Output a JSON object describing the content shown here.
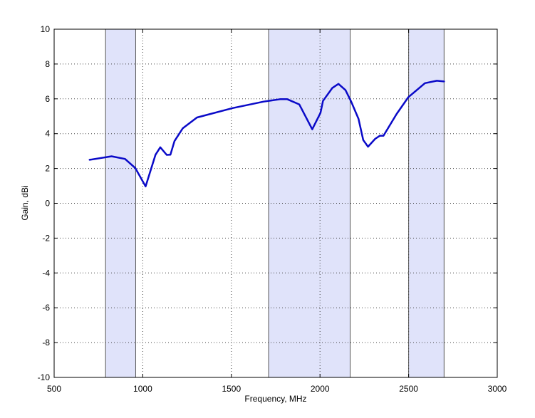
{
  "chart_data": {
    "type": "line",
    "title": "",
    "xlabel": "Frequency, MHz",
    "ylabel": "Gain, dBi",
    "xlim": [
      500,
      3000
    ],
    "ylim": [
      -10,
      10
    ],
    "xticks": [
      500,
      1000,
      1500,
      2000,
      2500,
      3000
    ],
    "yticks": [
      -10,
      -8,
      -6,
      -4,
      -2,
      0,
      2,
      4,
      6,
      8,
      10
    ],
    "grid": true,
    "line_color": "#0a0ac8",
    "band_color": "#e0e3fa",
    "shaded_bands": [
      [
        790,
        960
      ],
      [
        1710,
        2170
      ],
      [
        2500,
        2700
      ]
    ],
    "series": [
      {
        "x": [
          700,
          824,
          900,
          958,
          1016,
          1072,
          1099,
          1135,
          1156,
          1179,
          1226,
          1306,
          1507,
          1682,
          1775,
          1815,
          1883,
          1956,
          2003,
          2017,
          2070,
          2104,
          2144,
          2177,
          2217,
          2244,
          2271,
          2311,
          2338,
          2358,
          2432,
          2498,
          2592,
          2659,
          2700
        ],
        "y": [
          2.5,
          2.7,
          2.55,
          2.02,
          0.97,
          2.79,
          3.22,
          2.78,
          2.79,
          3.57,
          4.31,
          4.93,
          5.47,
          5.84,
          5.98,
          5.98,
          5.68,
          4.25,
          5.2,
          5.88,
          6.63,
          6.86,
          6.5,
          5.82,
          4.86,
          3.63,
          3.25,
          3.7,
          3.88,
          3.88,
          5.13,
          6.09,
          6.9,
          7.04,
          7.0
        ]
      }
    ]
  }
}
